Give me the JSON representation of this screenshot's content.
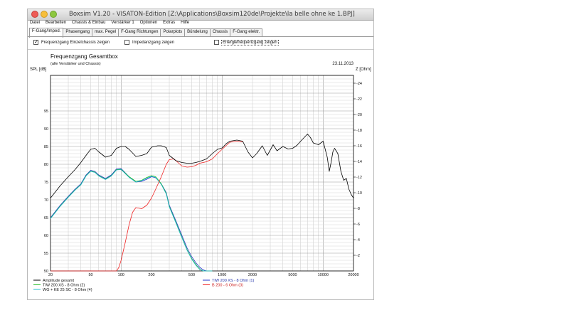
{
  "window": {
    "title": "Boxsim V1.20 - VISATON-Edition [Z:\\Applications\\Boxsim120de\\Projekte\\la belle ohne ke 1.BPJ]"
  },
  "menu": [
    "Datei",
    "Bearbeiten",
    "Chassis & Einbau",
    "Verstärker 1",
    "Optionen",
    "Extras",
    "Hilfe"
  ],
  "tabs": [
    "F-Gang/Imped.",
    "Phasengang",
    "max. Pegel",
    "F-Gang Richtungen",
    "Polarplots",
    "Bündelung",
    "Chassis",
    "F-Gang elektr."
  ],
  "checkboxes": [
    {
      "label": "Frequenzgang Einzelchassis zeigen",
      "checked": true
    },
    {
      "label": "Impedanzgang zeigen",
      "checked": false
    },
    {
      "label": "Energiefrequenzgang zeigen",
      "checked": false
    }
  ],
  "chart_data": {
    "type": "line",
    "title": "Frequenzgang Gesamtbox",
    "subtitle": "(alle Verstärker und Chassis)",
    "date": "23.11.2013",
    "ylabel": "SPL [dB]",
    "y2label": "Z [Ohm]",
    "xscale": "log",
    "xlim": [
      20,
      20000
    ],
    "ylim": [
      50,
      105
    ],
    "y2lim": [
      0,
      25
    ],
    "xticks": [
      "20",
      "50",
      "100",
      "200",
      "500",
      "1000",
      "2000",
      "5000",
      "10000",
      "20000"
    ],
    "yticks": [
      "50",
      "55",
      "60",
      "65",
      "70",
      "75",
      "80",
      "85",
      "90",
      "95"
    ],
    "y2ticks": [
      "2",
      "4",
      "6",
      "8",
      "10",
      "12",
      "14",
      "16",
      "18",
      "20",
      "22",
      "24"
    ],
    "grid": true,
    "legend_position": "bottom",
    "series": [
      {
        "name": "Amplitude gesamt",
        "color": "#000000",
        "x": [
          20,
          25,
          30,
          35,
          40,
          45,
          50,
          55,
          60,
          70,
          80,
          90,
          100,
          110,
          120,
          140,
          160,
          180,
          200,
          230,
          250,
          280,
          300,
          350,
          400,
          450,
          500,
          550,
          600,
          700,
          800,
          900,
          1000,
          1100,
          1200,
          1400,
          1600,
          1800,
          2000,
          2200,
          2500,
          2800,
          3000,
          3200,
          3500,
          4000,
          4500,
          5000,
          5500,
          6000,
          7000,
          7500,
          8000,
          9000,
          10000,
          11000,
          11500,
          12000,
          12500,
          13000,
          14000,
          15000,
          16000,
          17000,
          18000,
          19000,
          20000
        ],
        "y": [
          70.5,
          74,
          76.5,
          78.5,
          80.5,
          82.5,
          84.2,
          84.5,
          83.5,
          82,
          82.5,
          84.5,
          85,
          85,
          84.2,
          82.2,
          82.5,
          83,
          84.8,
          85.2,
          85.2,
          84.7,
          82.5,
          81,
          80.5,
          80.3,
          80.3,
          80.5,
          80.8,
          81.5,
          83,
          84.2,
          84.6,
          85.8,
          86.5,
          86.8,
          86.5,
          83.5,
          81.8,
          83,
          85.2,
          82.5,
          84,
          85.5,
          83.8,
          85,
          84.3,
          84.5,
          85.3,
          86.5,
          88.5,
          87.5,
          86,
          85.5,
          86.5,
          82,
          78,
          80.5,
          83.5,
          84.5,
          83,
          78,
          75.5,
          76,
          73,
          71.5,
          70.5
        ]
      },
      {
        "name": "TIW 200 XS - 8 Ohm (1)",
        "color": "#2233cc",
        "x": [
          20,
          25,
          30,
          35,
          40,
          45,
          50,
          55,
          60,
          70,
          80,
          90,
          100,
          120,
          140,
          160,
          180,
          200,
          220,
          250,
          280,
          300,
          350,
          400,
          450,
          500,
          550,
          600,
          650,
          700,
          800
        ],
        "y": [
          65,
          68.5,
          71,
          73,
          74.5,
          77,
          78.3,
          78,
          77,
          76,
          77,
          78.7,
          78.8,
          76.5,
          75,
          75.2,
          75.8,
          76.5,
          76.2,
          74.5,
          72,
          68.5,
          64,
          60,
          56.5,
          54,
          52.3,
          51,
          50.3,
          50,
          50
        ]
      },
      {
        "name": "TIW 200 XS - 8 Ohm (2)",
        "color": "#22bb22",
        "x": [
          20,
          25,
          30,
          35,
          40,
          45,
          50,
          55,
          60,
          70,
          80,
          90,
          100,
          120,
          140,
          160,
          180,
          200,
          220,
          250,
          280,
          300,
          350,
          400,
          450,
          500,
          550,
          600,
          650,
          700,
          800
        ],
        "y": [
          64.8,
          68.3,
          70.8,
          72.8,
          74.3,
          76.8,
          78.1,
          77.8,
          76.8,
          75.8,
          76.8,
          78.5,
          78.6,
          76.5,
          75.2,
          75.5,
          76.3,
          76.8,
          76.5,
          74.5,
          71.8,
          68.2,
          63.6,
          59.5,
          56,
          53.5,
          51.8,
          50.5,
          50,
          50,
          50
        ]
      },
      {
        "name": "WG + KE 25 SC - 8 Ohm (4)",
        "color": "#22bbcc",
        "x": [
          20,
          25,
          30,
          35,
          40,
          45,
          50,
          55,
          60,
          70,
          80,
          90,
          100,
          120,
          140,
          160,
          180,
          200,
          220,
          250,
          280,
          300,
          350,
          400,
          450,
          500,
          550,
          600,
          650,
          700,
          800
        ],
        "y": [
          64.7,
          68.2,
          70.7,
          72.7,
          74.2,
          76.7,
          78,
          77.7,
          76.7,
          75.7,
          76.7,
          78.4,
          78.5,
          76.3,
          75,
          75.4,
          76.1,
          76.6,
          76.3,
          74.3,
          71.6,
          68,
          63.4,
          59.3,
          55.8,
          53.3,
          51.6,
          50.4,
          50,
          50,
          50
        ]
      },
      {
        "name": "B 200 - 6 Ohm (3)",
        "color": "#ee2222",
        "x": [
          20,
          90,
          95,
          100,
          110,
          120,
          130,
          140,
          160,
          180,
          200,
          220,
          250,
          280,
          300,
          330,
          350,
          400,
          450,
          500,
          550,
          600,
          700,
          800,
          900,
          1000,
          1100,
          1200,
          1400,
          1600
        ],
        "y": [
          50,
          50,
          51,
          53,
          58,
          63,
          66.5,
          67.8,
          67.5,
          68.5,
          70.5,
          73,
          76.5,
          80,
          81.3,
          81.5,
          81,
          79.5,
          79.2,
          79.3,
          79.7,
          80.3,
          80.7,
          81.5,
          83,
          84.2,
          85.3,
          86.2,
          86.5,
          86.3
        ]
      }
    ]
  }
}
